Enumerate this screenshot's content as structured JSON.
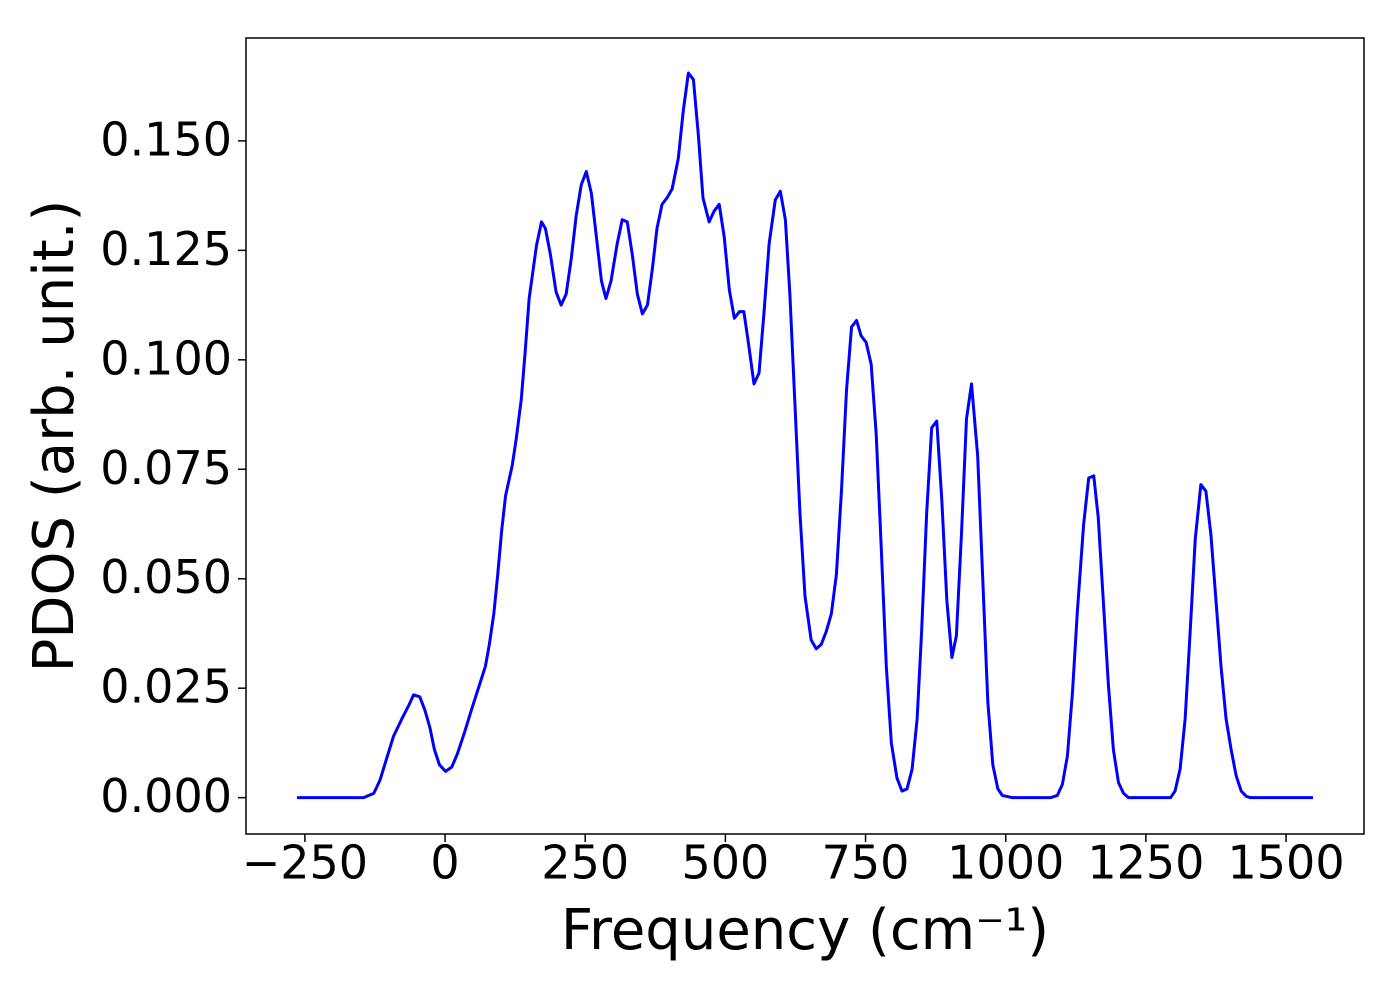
{
  "chart_data": {
    "type": "line",
    "xlabel": "Frequency (cm⁻¹)",
    "ylabel": "PDOS (arb. unit.)",
    "x": [
      -264,
      -145,
      -127,
      -116,
      -104,
      -92,
      -77,
      -65,
      -56,
      -45,
      -36,
      -27,
      -19,
      -10,
      1,
      12,
      22,
      35,
      47,
      62,
      72,
      79,
      87,
      94,
      101,
      108,
      120,
      127,
      136,
      143,
      150,
      163,
      172,
      179,
      188,
      198,
      207,
      216,
      225,
      234,
      243,
      252,
      261,
      270,
      279,
      287,
      296,
      307,
      316,
      325,
      334,
      343,
      352,
      361,
      370,
      378,
      387,
      396,
      405,
      416,
      425,
      434,
      443,
      452,
      460,
      471,
      480,
      489,
      498,
      507,
      516,
      525,
      533,
      542,
      551,
      560,
      569,
      578,
      589,
      598,
      607,
      615,
      624,
      633,
      642,
      653,
      662,
      671,
      680,
      689,
      698,
      707,
      716,
      725,
      734,
      742,
      751,
      760,
      769,
      778,
      787,
      796,
      806,
      815,
      824,
      833,
      842,
      850,
      859,
      868,
      877,
      886,
      895,
      904,
      912,
      921,
      930,
      939,
      950,
      959,
      968,
      977,
      986,
      994,
      1012,
      1080,
      1092,
      1101,
      1110,
      1119,
      1128,
      1139,
      1148,
      1157,
      1165,
      1174,
      1183,
      1192,
      1201,
      1210,
      1219,
      1294,
      1302,
      1311,
      1320,
      1329,
      1338,
      1348,
      1357,
      1366,
      1375,
      1384,
      1393,
      1402,
      1411,
      1420,
      1429,
      1437,
      1548
    ],
    "series": [
      {
        "color": "#0000ff",
        "values": [
          0,
          0,
          0.001,
          0.004,
          0.009,
          0.014,
          0.018,
          0.021,
          0.0235,
          0.023,
          0.02,
          0.016,
          0.011,
          0.0075,
          0.006,
          0.007,
          0.01,
          0.015,
          0.02,
          0.026,
          0.03,
          0.035,
          0.042,
          0.051,
          0.061,
          0.069,
          0.076,
          0.082,
          0.091,
          0.102,
          0.114,
          0.126,
          0.1315,
          0.13,
          0.124,
          0.1155,
          0.1125,
          0.115,
          0.123,
          0.133,
          0.14,
          0.143,
          0.138,
          0.128,
          0.118,
          0.114,
          0.118,
          0.1265,
          0.132,
          0.1315,
          0.124,
          0.115,
          0.1105,
          0.1125,
          0.121,
          0.13,
          0.1355,
          0.137,
          0.139,
          0.146,
          0.157,
          0.1655,
          0.164,
          0.151,
          0.137,
          0.1315,
          0.134,
          0.1355,
          0.128,
          0.116,
          0.1095,
          0.111,
          0.111,
          0.103,
          0.0945,
          0.097,
          0.111,
          0.1265,
          0.1365,
          0.1385,
          0.132,
          0.115,
          0.09,
          0.065,
          0.046,
          0.036,
          0.034,
          0.035,
          0.038,
          0.042,
          0.051,
          0.07,
          0.093,
          0.1075,
          0.109,
          0.1055,
          0.104,
          0.099,
          0.083,
          0.057,
          0.03,
          0.0125,
          0.0045,
          0.0015,
          0.002,
          0.0065,
          0.018,
          0.038,
          0.065,
          0.0845,
          0.086,
          0.068,
          0.045,
          0.032,
          0.037,
          0.06,
          0.0865,
          0.0945,
          0.078,
          0.05,
          0.022,
          0.0075,
          0.002,
          0.0005,
          0,
          0,
          0.0005,
          0.003,
          0.0095,
          0.024,
          0.043,
          0.0625,
          0.073,
          0.0735,
          0.064,
          0.045,
          0.026,
          0.011,
          0.0035,
          0.001,
          0,
          0,
          0.0015,
          0.0065,
          0.018,
          0.038,
          0.059,
          0.0715,
          0.07,
          0.06,
          0.045,
          0.03,
          0.018,
          0.011,
          0.005,
          0.0015,
          0.0003,
          0,
          0
        ]
      }
    ],
    "xlim": [
      -355,
      1639
    ],
    "ylim": [
      -0.0083,
      0.1735
    ],
    "xticks": [
      {
        "value": -250,
        "label": "−250"
      },
      0,
      250,
      500,
      750,
      1000,
      1250,
      1500
    ],
    "yticks": [
      {
        "value": 0,
        "label": "0.000"
      },
      {
        "value": 0.025,
        "label": "0.025"
      },
      {
        "value": 0.05,
        "label": "0.050"
      },
      {
        "value": 0.075,
        "label": "0.075"
      },
      {
        "value": 0.1,
        "label": "0.100"
      },
      {
        "value": 0.125,
        "label": "0.125"
      },
      {
        "value": 0.15,
        "label": "0.150"
      }
    ],
    "grid": false
  }
}
